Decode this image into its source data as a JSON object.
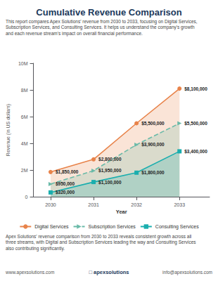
{
  "chart_data": {
    "type": "line",
    "title": "Cumulative Revenue Comparison",
    "subtitle": "This report compares Apex Solutions' revenue from 2030 to 2033, focusing on Digital Services,\nSubscription Services, and Consulting Services. It helps us understand the company's growth\nand each revenue stream's impact on overall financial performance.",
    "footer_text": "Apex Solutions' revenue comparison from 2030 to 2033 reveals consistent growth across all\nthree streams, with Digital and Subscription Services leading the way and Consulting Services\nalso contributing significantly.",
    "website": "www.apexsolutions.com",
    "logo_text": "□ apexsolutions",
    "email": "info@apexsolutions.com",
    "x_label": "Year",
    "y_label": "Revenue (in US dollars)",
    "x": [
      2030,
      2031,
      2032,
      2033
    ],
    "xlim": [
      2029.6,
      2033.7
    ],
    "xticks": [
      2030,
      2031,
      2032,
      2033
    ],
    "ylim": [
      0,
      10000000
    ],
    "yticks": [
      0,
      {
        "value": 2000000,
        "label": "2M"
      },
      {
        "value": 4000000,
        "label": "4M"
      },
      {
        "value": 6000000,
        "label": "6M"
      },
      {
        "value": 8000000,
        "label": "8M"
      },
      {
        "value": 10000000,
        "label": "10M"
      }
    ],
    "grid": false,
    "legend": "bottom",
    "data_labels": true,
    "series": [
      {
        "name": "Digital Services",
        "color": "#E8834A",
        "marker": "circle",
        "line_style": "solid",
        "values": [
          1850000,
          2800000,
          5500000,
          8100000
        ],
        "value_labels": [
          "$1,850,000",
          "$2,800,000",
          "$5,500,000",
          "$8,100,000"
        ]
      },
      {
        "name": "Subscription Services",
        "color": "#6ABAA8",
        "marker": "triangle-right",
        "line_style": "dashed",
        "values": [
          950000,
          1950000,
          3900000,
          5500000
        ],
        "value_labels": [
          "$950,000",
          "$1,950,000",
          "$3,900,000",
          "$5,500,000"
        ]
      },
      {
        "name": "Consulting Services",
        "color": "#1AAEAE",
        "marker": "square",
        "line_style": "solid",
        "values": [
          320000,
          1100000,
          1800000,
          3400000
        ],
        "value_labels": [
          "$320,000",
          "$1,100,000",
          "$1,800,000",
          "$3,400,000"
        ]
      }
    ]
  }
}
